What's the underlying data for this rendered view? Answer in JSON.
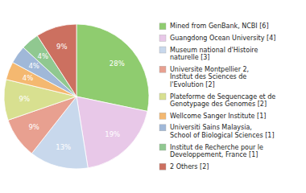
{
  "chart_data": {
    "type": "pie",
    "categories": [
      "Mined from GenBank, NCBI [6]",
      "Guangdong Ocean University [4]",
      "Museum national d'Histoire\nnaturelle [3]",
      "Universite Montpellier 2,\nInstitut des Sciences de\nl'Evolution [2]",
      "Plateforme de Sequencage et de\nGenotypage des Genomes [2]",
      "Wellcome Sanger Institute [1]",
      "Universiti Sains Malaysia,\nSchool of Biological Sciences [1]",
      "Institut de Recherche pour le\nDeveloppement, France [1]",
      "2 Others [2]"
    ],
    "values": [
      28,
      19,
      13,
      9,
      9,
      4,
      4,
      4,
      9
    ],
    "value_labels": [
      "28%",
      "19%",
      "13%",
      "9%",
      "9%",
      "4%",
      "4%",
      "4%",
      "9%"
    ],
    "colors": [
      "#8fcc6f",
      "#e8c8e8",
      "#c8d8ec",
      "#e8a090",
      "#d8e090",
      "#f4b870",
      "#a0b8d8",
      "#90c890",
      "#cc7060"
    ],
    "data_labels": true,
    "legend": "right"
  }
}
